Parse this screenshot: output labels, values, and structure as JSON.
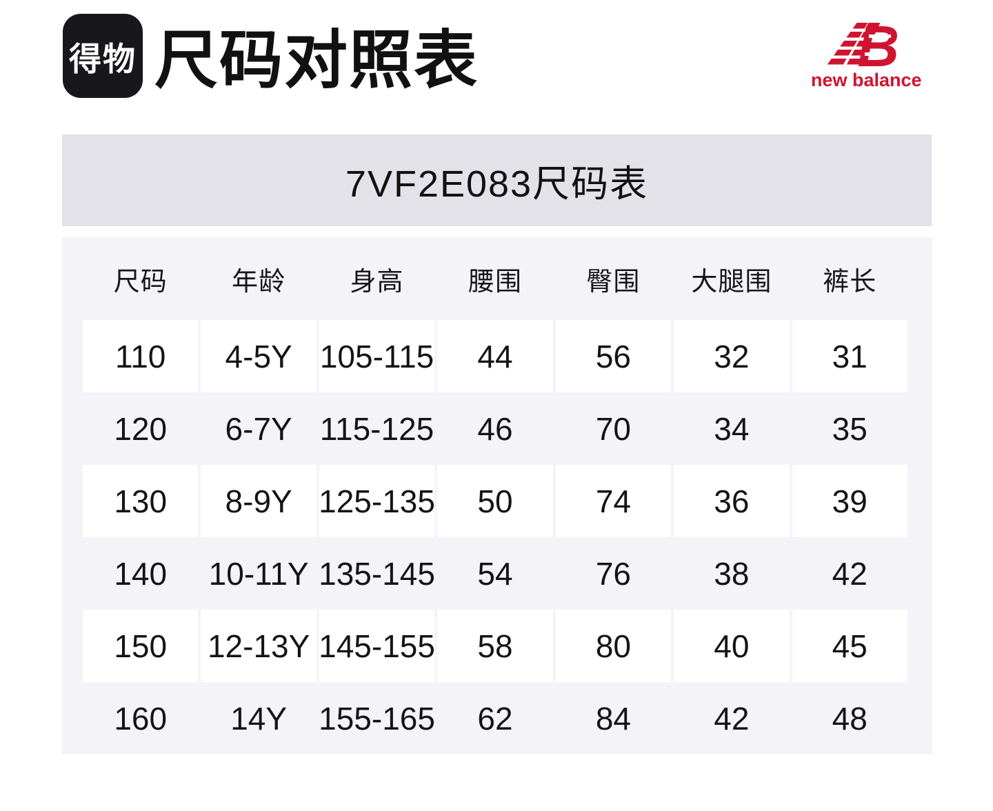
{
  "header": {
    "logo_text": "得物",
    "title": "尺码对照表",
    "brand": {
      "mark_letter": "B",
      "name": "new balance"
    }
  },
  "band": {
    "title": "7VF2E083尺码表"
  },
  "table": {
    "columns": [
      "尺码",
      "年龄",
      "身高",
      "腰围",
      "臀围",
      "大腿围",
      "裤长"
    ],
    "rows": [
      [
        "110",
        "4-5Y",
        "105-115",
        "44",
        "56",
        "32",
        "31"
      ],
      [
        "120",
        "6-7Y",
        "115-125",
        "46",
        "70",
        "34",
        "35"
      ],
      [
        "130",
        "8-9Y",
        "125-135",
        "50",
        "74",
        "36",
        "39"
      ],
      [
        "140",
        "10-11Y",
        "135-145",
        "54",
        "76",
        "38",
        "42"
      ],
      [
        "150",
        "12-13Y",
        "145-155",
        "58",
        "80",
        "40",
        "45"
      ],
      [
        "160",
        "14Y",
        "155-165",
        "62",
        "84",
        "42",
        "48"
      ]
    ]
  },
  "colors": {
    "nb_red": "#D0142F",
    "band_bg": "#E3E2E8",
    "table_bg": "#F4F4F8",
    "logo_bg": "#17171C"
  }
}
